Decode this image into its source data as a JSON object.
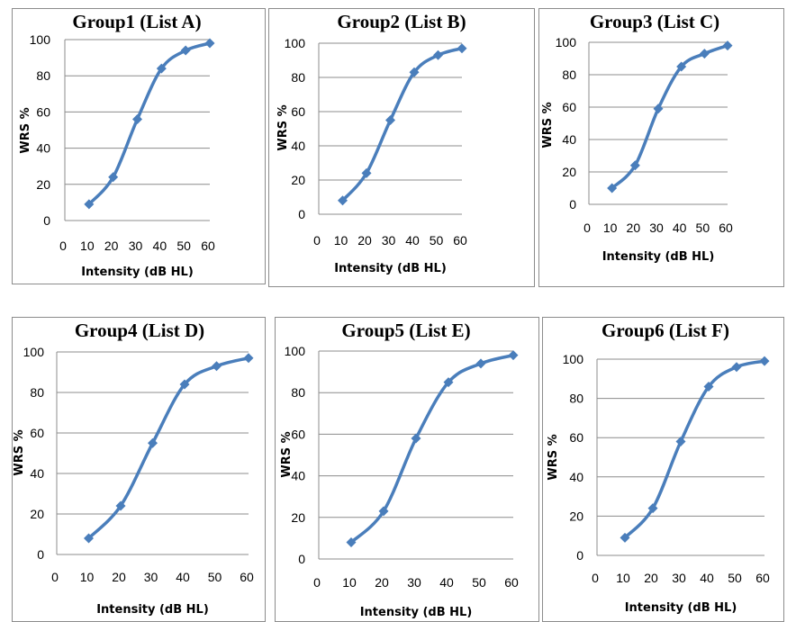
{
  "chart_data": [
    {
      "type": "line",
      "title": "Group1 (List  A)",
      "xlabel": "Intensity (dB HL)",
      "ylabel": "WRS %",
      "xlim": [
        0,
        60
      ],
      "ylim": [
        0,
        100
      ],
      "x_ticks": [
        "0",
        "10",
        "20",
        "30",
        "40",
        "50",
        "60"
      ],
      "y_ticks": [
        "0",
        "20",
        "40",
        "60",
        "80",
        "100"
      ],
      "grid": true,
      "x": [
        10,
        20,
        30,
        40,
        50,
        60
      ],
      "y": [
        9,
        24,
        56,
        84,
        94,
        98
      ],
      "color": "#4a7ebb"
    },
    {
      "type": "line",
      "title": "Group2 (List B)",
      "xlabel": "Intensity (dB HL)",
      "ylabel": "WRS %",
      "xlim": [
        0,
        60
      ],
      "ylim": [
        0,
        100
      ],
      "x_ticks": [
        "0",
        "10",
        "20",
        "30",
        "40",
        "50",
        "60"
      ],
      "y_ticks": [
        "0",
        "20",
        "40",
        "60",
        "80",
        "100"
      ],
      "grid": true,
      "x": [
        10,
        20,
        30,
        40,
        50,
        60
      ],
      "y": [
        8,
        24,
        55,
        83,
        93,
        97
      ],
      "color": "#4a7ebb"
    },
    {
      "type": "line",
      "title": "Group3 (List C)",
      "xlabel": "Intensity (dB HL)",
      "ylabel": "WRS %",
      "xlim": [
        0,
        60
      ],
      "ylim": [
        0,
        100
      ],
      "x_ticks": [
        "0",
        "10",
        "20",
        "30",
        "40",
        "50",
        "60"
      ],
      "y_ticks": [
        "0",
        "20",
        "40",
        "60",
        "80",
        "100"
      ],
      "grid": true,
      "x": [
        10,
        20,
        30,
        40,
        50,
        60
      ],
      "y": [
        10,
        24,
        59,
        85,
        93,
        98
      ],
      "color": "#4a7ebb"
    },
    {
      "type": "line",
      "title": "Group4 (List D)",
      "xlabel": "Intensity (dB HL)",
      "ylabel": "WRS %",
      "xlim": [
        0,
        60
      ],
      "ylim": [
        0,
        100
      ],
      "x_ticks": [
        "0",
        "10",
        "20",
        "30",
        "40",
        "50",
        "60"
      ],
      "y_ticks": [
        "0",
        "20",
        "40",
        "60",
        "80",
        "100"
      ],
      "grid": true,
      "x": [
        10,
        20,
        30,
        40,
        50,
        60
      ],
      "y": [
        8,
        24,
        55,
        84,
        93,
        97
      ],
      "color": "#4a7ebb"
    },
    {
      "type": "line",
      "title": "Group5 (List E)",
      "xlabel": "Intensity (dB HL)",
      "ylabel": "WRS %",
      "xlim": [
        0,
        60
      ],
      "ylim": [
        0,
        100
      ],
      "x_ticks": [
        "0",
        "10",
        "20",
        "30",
        "40",
        "50",
        "60"
      ],
      "y_ticks": [
        "0",
        "20",
        "40",
        "60",
        "80",
        "100"
      ],
      "grid": true,
      "x": [
        10,
        20,
        30,
        40,
        50,
        60
      ],
      "y": [
        8,
        23,
        58,
        85,
        94,
        98
      ],
      "color": "#4a7ebb"
    },
    {
      "type": "line",
      "title": "Group6 (List F)",
      "xlabel": "Intensity (dB HL)",
      "ylabel": "WRS %",
      "xlim": [
        0,
        60
      ],
      "ylim": [
        0,
        100
      ],
      "x_ticks": [
        "0",
        "10",
        "20",
        "30",
        "40",
        "50",
        "60"
      ],
      "y_ticks": [
        "0",
        "20",
        "40",
        "60",
        "80",
        "100"
      ],
      "grid": true,
      "x": [
        10,
        20,
        30,
        40,
        50,
        60
      ],
      "y": [
        9,
        24,
        58,
        86,
        96,
        99
      ],
      "color": "#4a7ebb"
    }
  ]
}
